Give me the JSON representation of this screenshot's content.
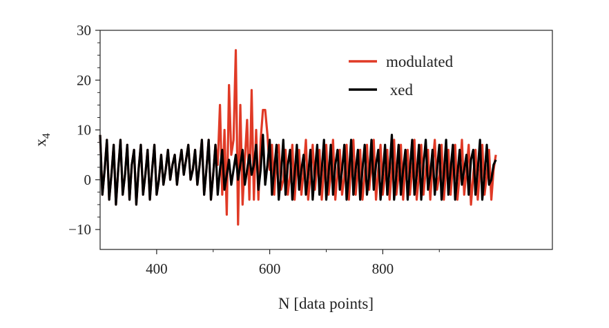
{
  "chart_data": {
    "type": "line",
    "xlabel": "N [data points]",
    "ylabel": "x",
    "ylabel_subscript": "4",
    "xlim": [
      300,
      1100
    ],
    "ylim": [
      -14,
      30
    ],
    "x_ticks": [
      400,
      600,
      800
    ],
    "x_tick_labels": [
      "400",
      "600",
      "800"
    ],
    "y_ticks": [
      -10,
      0,
      10,
      20,
      30
    ],
    "y_tick_labels": [
      "−10",
      "0",
      "10",
      "20",
      "30"
    ],
    "grid": false,
    "legend_position": "top-right",
    "x": {
      "start": 300,
      "step": 4,
      "end": 1000
    },
    "series": [
      {
        "name": "modulated",
        "color": "#e03a26",
        "values": [
          9,
          -3,
          2,
          8,
          -4,
          1,
          7,
          -5,
          2,
          8,
          -3,
          1,
          7,
          -4,
          3,
          6,
          -5,
          2,
          7,
          -3,
          1,
          6,
          -4,
          2,
          7,
          -3,
          0,
          5,
          -1,
          2,
          6,
          0,
          3,
          5,
          -1,
          3,
          6,
          1,
          4,
          7,
          0,
          2,
          6,
          -1,
          3,
          8,
          -3,
          2,
          8,
          -4,
          1,
          7,
          3,
          15,
          -3,
          10,
          -7,
          19,
          5,
          8,
          26,
          -9,
          15,
          -5,
          4,
          12,
          -4,
          18,
          -4,
          10,
          -4,
          8,
          14,
          14,
          9,
          2,
          7,
          -3,
          5,
          7,
          -2,
          0,
          6,
          -3,
          1,
          7,
          -4,
          3,
          6,
          -3,
          2,
          8,
          -4,
          1,
          7,
          -2,
          3,
          6,
          -4,
          2,
          7,
          -3,
          1,
          8,
          -4,
          2,
          6,
          -3,
          1,
          7,
          -4,
          3,
          8,
          -3,
          2,
          6,
          -4,
          1,
          7,
          -2,
          3,
          8,
          -4,
          2,
          7,
          -3,
          1,
          6,
          -4,
          2,
          8,
          -3,
          1,
          7,
          -4,
          3,
          6,
          -3,
          2,
          8,
          -4,
          1,
          7,
          -3,
          2,
          6,
          -4,
          3,
          8,
          -2,
          1,
          7,
          -4,
          2,
          6,
          -3,
          3,
          7,
          -4,
          1,
          8,
          -3,
          2,
          7,
          -5,
          1,
          6,
          -4,
          2,
          7,
          -3,
          1,
          6,
          -4,
          2,
          5
        ]
      },
      {
        "name": "xed",
        "legend_label": " xed",
        "color": "#000000",
        "values": [
          9,
          -3,
          2,
          8,
          -4,
          1,
          7,
          -5,
          2,
          8,
          -3,
          1,
          7,
          -4,
          3,
          6,
          -5,
          2,
          7,
          -3,
          1,
          6,
          -4,
          2,
          7,
          -3,
          0,
          5,
          -1,
          2,
          6,
          0,
          3,
          5,
          -1,
          3,
          6,
          1,
          4,
          7,
          0,
          2,
          6,
          -1,
          3,
          8,
          -3,
          2,
          8,
          -4,
          1,
          7,
          -3,
          2,
          6,
          -2,
          1,
          4,
          -1,
          2,
          5,
          0,
          3,
          6,
          -1,
          2,
          5,
          1,
          3,
          7,
          -2,
          2,
          9,
          -1,
          3,
          8,
          -3,
          2,
          7,
          -4,
          1,
          8,
          -3,
          3,
          6,
          -4,
          1,
          7,
          -2,
          2,
          5,
          -3,
          1,
          6,
          -4,
          2,
          7,
          -3,
          2,
          8,
          -4,
          1,
          7,
          -3,
          3,
          6,
          -2,
          2,
          7,
          -4,
          1,
          8,
          -3,
          2,
          6,
          -4,
          2,
          7,
          -3,
          1,
          8,
          -2,
          3,
          6,
          -4,
          1,
          7,
          -3,
          2,
          9,
          -4,
          1,
          7,
          -3,
          2,
          6,
          -4,
          2,
          8,
          -3,
          1,
          7,
          -4,
          3,
          8,
          -2,
          1,
          6,
          -3,
          2,
          7,
          -4,
          1,
          8,
          -3,
          2,
          7,
          -4,
          1,
          6,
          -1,
          2,
          5,
          -3,
          4,
          6,
          -3,
          2,
          8,
          -4,
          1,
          7,
          -1,
          0,
          3,
          4
        ]
      }
    ]
  }
}
